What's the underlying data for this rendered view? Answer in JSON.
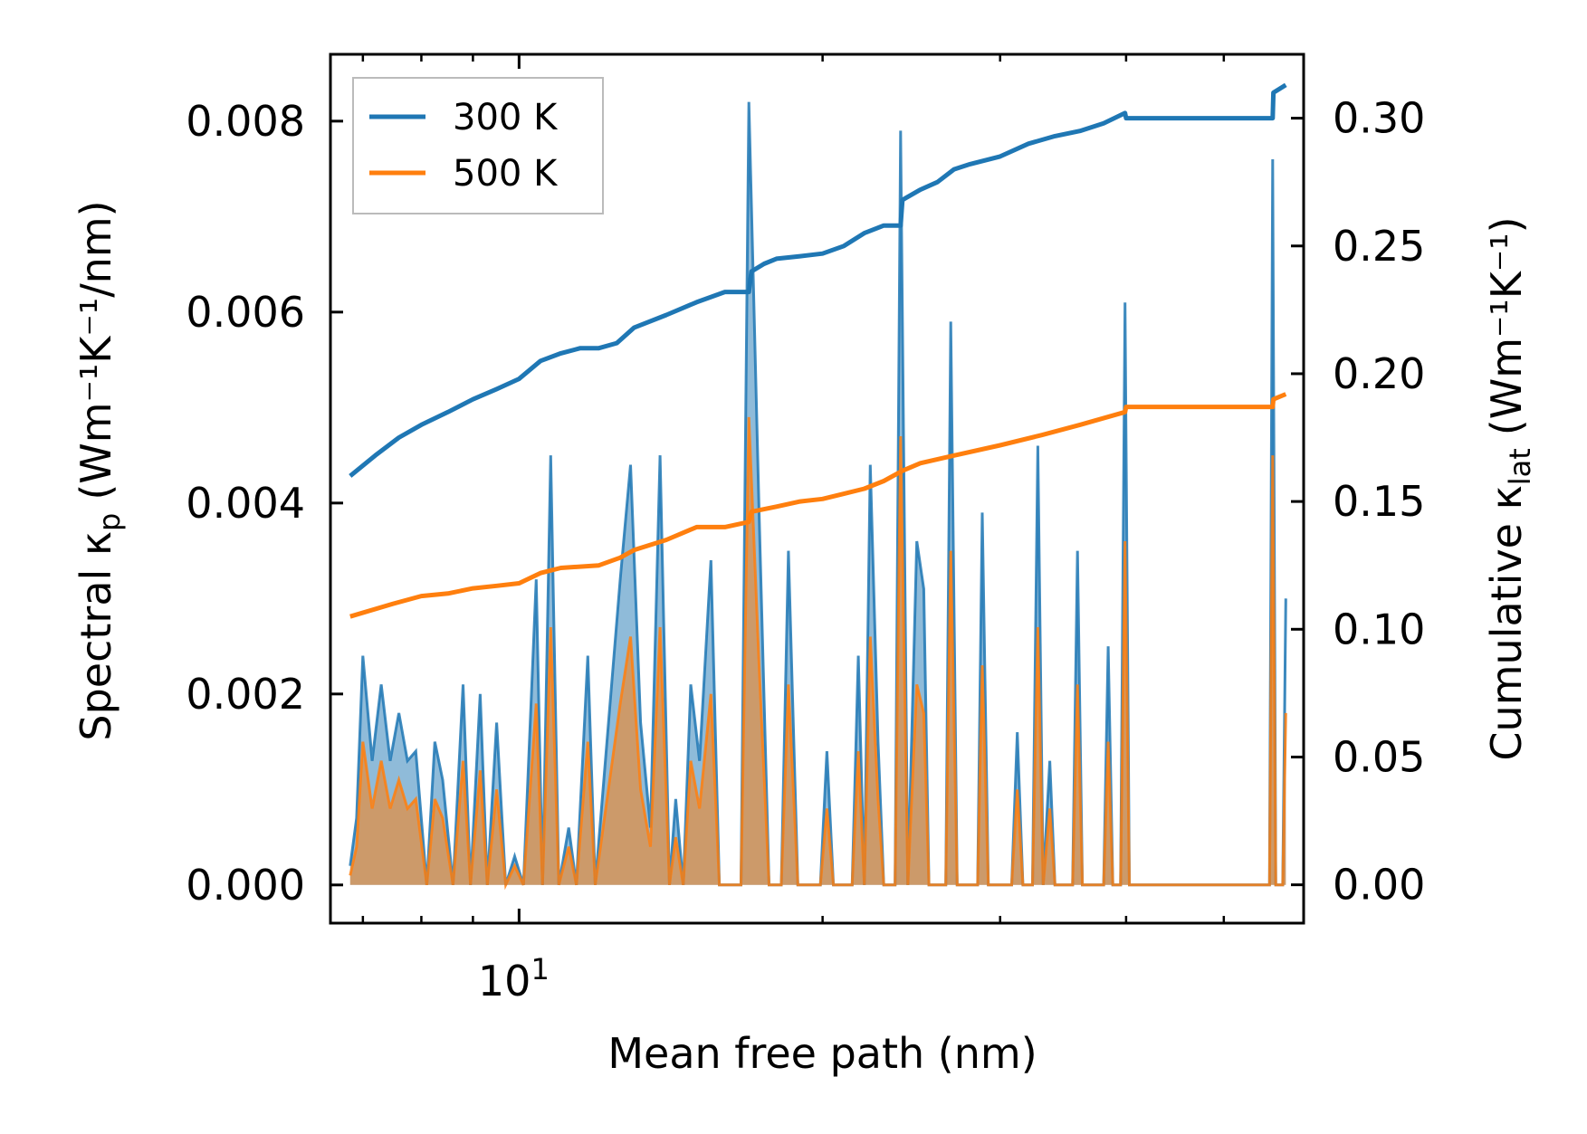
{
  "chart_data": {
    "type": "line",
    "title": "",
    "xlabel": "Mean free path (nm)",
    "ylabel_left": {
      "main": "Spectral κ",
      "sub": "p",
      "unit": "(Wm⁻¹K⁻¹/nm)"
    },
    "ylabel_right": {
      "main": "Cumulative κ",
      "sub": "lat",
      "unit": "(Wm⁻¹K⁻¹)"
    },
    "x_scale": "log",
    "xlim": [
      6.5,
      60
    ],
    "x_major_tick": {
      "value": 10,
      "label_base": "10",
      "label_exp": "1"
    },
    "x_minor_ticks": [
      7,
      8,
      9,
      20,
      30,
      40,
      50,
      60
    ],
    "ylim_left": [
      -0.0004,
      0.0087
    ],
    "ylim_right": [
      -0.015,
      0.325
    ],
    "left_ticks": [
      {
        "v": 0.0,
        "label": "0.000"
      },
      {
        "v": 0.002,
        "label": "0.002"
      },
      {
        "v": 0.004,
        "label": "0.004"
      },
      {
        "v": 0.006,
        "label": "0.006"
      },
      {
        "v": 0.008,
        "label": "0.008"
      }
    ],
    "right_ticks": [
      {
        "v": 0.0,
        "label": "0.00"
      },
      {
        "v": 0.05,
        "label": "0.05"
      },
      {
        "v": 0.1,
        "label": "0.10"
      },
      {
        "v": 0.15,
        "label": "0.15"
      },
      {
        "v": 0.2,
        "label": "0.20"
      },
      {
        "v": 0.25,
        "label": "0.25"
      },
      {
        "v": 0.3,
        "label": "0.30"
      }
    ],
    "legend": {
      "position": "top-left",
      "entries": [
        "300 K",
        "500 K"
      ]
    },
    "series": [
      {
        "name": "300 K",
        "color": "#1f77b4",
        "spectral": [
          [
            6.8,
            0.0002
          ],
          [
            6.9,
            0.0007
          ],
          [
            7.0,
            0.0024
          ],
          [
            7.15,
            0.0013
          ],
          [
            7.3,
            0.0021
          ],
          [
            7.45,
            0.0013
          ],
          [
            7.6,
            0.0018
          ],
          [
            7.75,
            0.0013
          ],
          [
            7.9,
            0.0014
          ],
          [
            8.1,
            0.0
          ],
          [
            8.25,
            0.0015
          ],
          [
            8.4,
            0.0011
          ],
          [
            8.6,
            0.0
          ],
          [
            8.8,
            0.0021
          ],
          [
            8.95,
            0.0
          ],
          [
            9.15,
            0.002
          ],
          [
            9.3,
            0.0
          ],
          [
            9.5,
            0.0017
          ],
          [
            9.7,
            0.0
          ],
          [
            9.9,
            0.0003
          ],
          [
            10.1,
            0.0
          ],
          [
            10.4,
            0.0032
          ],
          [
            10.55,
            0.0
          ],
          [
            10.75,
            0.0045
          ],
          [
            10.95,
            0.0
          ],
          [
            11.2,
            0.0006
          ],
          [
            11.4,
            0.0
          ],
          [
            11.7,
            0.0024
          ],
          [
            11.9,
            0.0
          ],
          [
            12.6,
            0.0032
          ],
          [
            12.9,
            0.0044
          ],
          [
            13.2,
            0.0017
          ],
          [
            13.5,
            0.0006
          ],
          [
            13.8,
            0.0045
          ],
          [
            14.1,
            0.0
          ],
          [
            14.3,
            0.0009
          ],
          [
            14.55,
            0.0
          ],
          [
            14.8,
            0.0021
          ],
          [
            15.1,
            0.0013
          ],
          [
            15.5,
            0.0034
          ],
          [
            15.8,
            0.0
          ],
          [
            16.6,
            0.0
          ],
          [
            16.9,
            0.0082
          ],
          [
            17.3,
            0.0039
          ],
          [
            17.7,
            0.0
          ],
          [
            18.2,
            0.0
          ],
          [
            18.5,
            0.0035
          ],
          [
            18.9,
            0.0
          ],
          [
            19.9,
            0.0
          ],
          [
            20.2,
            0.0014
          ],
          [
            20.5,
            0.0
          ],
          [
            21.4,
            0.0
          ],
          [
            21.7,
            0.0024
          ],
          [
            22.0,
            0.0
          ],
          [
            22.3,
            0.0044
          ],
          [
            22.7,
            0.0015
          ],
          [
            23.0,
            0.0
          ],
          [
            23.6,
            0.0
          ],
          [
            23.9,
            0.0079
          ],
          [
            24.3,
            0.0
          ],
          [
            24.8,
            0.0036
          ],
          [
            25.2,
            0.0031
          ],
          [
            25.5,
            0.0
          ],
          [
            26.5,
            0.0
          ],
          [
            26.8,
            0.0059
          ],
          [
            27.2,
            0.0
          ],
          [
            28.5,
            0.0
          ],
          [
            28.8,
            0.0039
          ],
          [
            29.2,
            0.0
          ],
          [
            30.8,
            0.0
          ],
          [
            31.2,
            0.0016
          ],
          [
            31.6,
            0.0
          ],
          [
            32.3,
            0.0
          ],
          [
            32.7,
            0.0046
          ],
          [
            33.1,
            0.0
          ],
          [
            33.6,
            0.0013
          ],
          [
            34.0,
            0.0
          ],
          [
            35.4,
            0.0
          ],
          [
            35.8,
            0.0035
          ],
          [
            36.2,
            0.0
          ],
          [
            38.0,
            0.0
          ],
          [
            38.4,
            0.0025
          ],
          [
            38.8,
            0.0
          ],
          [
            39.5,
            0.0
          ],
          [
            39.9,
            0.0061
          ],
          [
            40.3,
            0.0
          ],
          [
            55.5,
            0.0
          ],
          [
            55.9,
            0.0076
          ],
          [
            56.3,
            0.0
          ],
          [
            57.2,
            0.0
          ],
          [
            57.6,
            0.003
          ]
        ],
        "cumulative": [
          [
            6.8,
            0.16
          ],
          [
            7.2,
            0.168
          ],
          [
            7.6,
            0.175
          ],
          [
            8.0,
            0.18
          ],
          [
            8.5,
            0.185
          ],
          [
            9.0,
            0.19
          ],
          [
            9.5,
            0.194
          ],
          [
            10.0,
            0.198
          ],
          [
            10.5,
            0.205
          ],
          [
            11.0,
            0.208
          ],
          [
            11.5,
            0.21
          ],
          [
            12.0,
            0.21
          ],
          [
            12.5,
            0.212
          ],
          [
            13.0,
            0.218
          ],
          [
            14.0,
            0.223
          ],
          [
            15.0,
            0.228
          ],
          [
            16.0,
            0.232
          ],
          [
            16.9,
            0.232
          ],
          [
            17.0,
            0.24
          ],
          [
            17.5,
            0.243
          ],
          [
            18.0,
            0.245
          ],
          [
            19.0,
            0.246
          ],
          [
            20.0,
            0.247
          ],
          [
            21.0,
            0.25
          ],
          [
            22.0,
            0.255
          ],
          [
            23.0,
            0.258
          ],
          [
            23.9,
            0.258
          ],
          [
            24.0,
            0.268
          ],
          [
            25.0,
            0.272
          ],
          [
            26.0,
            0.275
          ],
          [
            27.0,
            0.28
          ],
          [
            28.0,
            0.282
          ],
          [
            30.0,
            0.285
          ],
          [
            32.0,
            0.29
          ],
          [
            34.0,
            0.293
          ],
          [
            36.0,
            0.295
          ],
          [
            38.0,
            0.298
          ],
          [
            39.9,
            0.302
          ],
          [
            40.0,
            0.3
          ],
          [
            55.9,
            0.3
          ],
          [
            56.0,
            0.31
          ],
          [
            57.6,
            0.313
          ]
        ]
      },
      {
        "name": "500 K",
        "color": "#ff7f0e",
        "spectral": [
          [
            6.8,
            0.0001
          ],
          [
            6.9,
            0.0004
          ],
          [
            7.0,
            0.0015
          ],
          [
            7.15,
            0.0008
          ],
          [
            7.3,
            0.0013
          ],
          [
            7.45,
            0.0008
          ],
          [
            7.6,
            0.0011
          ],
          [
            7.75,
            0.0008
          ],
          [
            7.9,
            0.0009
          ],
          [
            8.1,
            0.0
          ],
          [
            8.25,
            0.0009
          ],
          [
            8.4,
            0.0007
          ],
          [
            8.6,
            0.0
          ],
          [
            8.8,
            0.0013
          ],
          [
            8.95,
            0.0
          ],
          [
            9.15,
            0.0012
          ],
          [
            9.3,
            0.0
          ],
          [
            9.5,
            0.001
          ],
          [
            9.7,
            0.0
          ],
          [
            9.9,
            0.0002
          ],
          [
            10.1,
            0.0
          ],
          [
            10.4,
            0.0019
          ],
          [
            10.55,
            0.0
          ],
          [
            10.75,
            0.0027
          ],
          [
            10.95,
            0.0
          ],
          [
            11.2,
            0.0004
          ],
          [
            11.4,
            0.0
          ],
          [
            11.7,
            0.0015
          ],
          [
            11.9,
            0.0
          ],
          [
            12.6,
            0.0019
          ],
          [
            12.9,
            0.0026
          ],
          [
            13.2,
            0.001
          ],
          [
            13.5,
            0.0004
          ],
          [
            13.8,
            0.0027
          ],
          [
            14.1,
            0.0
          ],
          [
            14.3,
            0.0005
          ],
          [
            14.55,
            0.0
          ],
          [
            14.8,
            0.0013
          ],
          [
            15.1,
            0.0008
          ],
          [
            15.5,
            0.002
          ],
          [
            15.8,
            0.0
          ],
          [
            16.6,
            0.0
          ],
          [
            16.9,
            0.0049
          ],
          [
            17.3,
            0.0023
          ],
          [
            17.7,
            0.0
          ],
          [
            18.2,
            0.0
          ],
          [
            18.5,
            0.0021
          ],
          [
            18.9,
            0.0
          ],
          [
            19.9,
            0.0
          ],
          [
            20.2,
            0.0008
          ],
          [
            20.5,
            0.0
          ],
          [
            21.4,
            0.0
          ],
          [
            21.7,
            0.0014
          ],
          [
            22.0,
            0.0
          ],
          [
            22.3,
            0.0026
          ],
          [
            22.7,
            0.0009
          ],
          [
            23.0,
            0.0
          ],
          [
            23.6,
            0.0
          ],
          [
            23.9,
            0.0047
          ],
          [
            24.3,
            0.0
          ],
          [
            24.8,
            0.0021
          ],
          [
            25.2,
            0.0018
          ],
          [
            25.5,
            0.0
          ],
          [
            26.5,
            0.0
          ],
          [
            26.8,
            0.0035
          ],
          [
            27.2,
            0.0
          ],
          [
            28.5,
            0.0
          ],
          [
            28.8,
            0.0023
          ],
          [
            29.2,
            0.0
          ],
          [
            30.8,
            0.0
          ],
          [
            31.2,
            0.001
          ],
          [
            31.6,
            0.0
          ],
          [
            32.3,
            0.0
          ],
          [
            32.7,
            0.0027
          ],
          [
            33.1,
            0.0
          ],
          [
            33.6,
            0.0008
          ],
          [
            34.0,
            0.0
          ],
          [
            35.4,
            0.0
          ],
          [
            35.8,
            0.0021
          ],
          [
            36.2,
            0.0
          ],
          [
            38.0,
            0.0
          ],
          [
            38.4,
            0.0015
          ],
          [
            38.8,
            0.0
          ],
          [
            39.5,
            0.0
          ],
          [
            39.9,
            0.0036
          ],
          [
            40.3,
            0.0
          ],
          [
            55.5,
            0.0
          ],
          [
            55.9,
            0.0045
          ],
          [
            56.3,
            0.0
          ],
          [
            57.2,
            0.0
          ],
          [
            57.6,
            0.0018
          ]
        ],
        "cumulative": [
          [
            6.8,
            0.105
          ],
          [
            7.5,
            0.11
          ],
          [
            8.0,
            0.113
          ],
          [
            8.5,
            0.114
          ],
          [
            9.0,
            0.116
          ],
          [
            9.5,
            0.117
          ],
          [
            10.0,
            0.118
          ],
          [
            10.5,
            0.122
          ],
          [
            11.0,
            0.124
          ],
          [
            12.0,
            0.125
          ],
          [
            12.6,
            0.128
          ],
          [
            13.0,
            0.131
          ],
          [
            14.0,
            0.135
          ],
          [
            15.0,
            0.14
          ],
          [
            16.0,
            0.14
          ],
          [
            16.9,
            0.142
          ],
          [
            17.0,
            0.146
          ],
          [
            18.0,
            0.148
          ],
          [
            19.0,
            0.15
          ],
          [
            20.0,
            0.151
          ],
          [
            21.0,
            0.153
          ],
          [
            22.0,
            0.155
          ],
          [
            23.0,
            0.158
          ],
          [
            24.0,
            0.162
          ],
          [
            25.0,
            0.165
          ],
          [
            27.0,
            0.168
          ],
          [
            30.0,
            0.172
          ],
          [
            33.0,
            0.176
          ],
          [
            36.0,
            0.18
          ],
          [
            39.9,
            0.185
          ],
          [
            40.0,
            0.187
          ],
          [
            55.9,
            0.187
          ],
          [
            56.0,
            0.19
          ],
          [
            57.6,
            0.192
          ]
        ]
      }
    ]
  }
}
